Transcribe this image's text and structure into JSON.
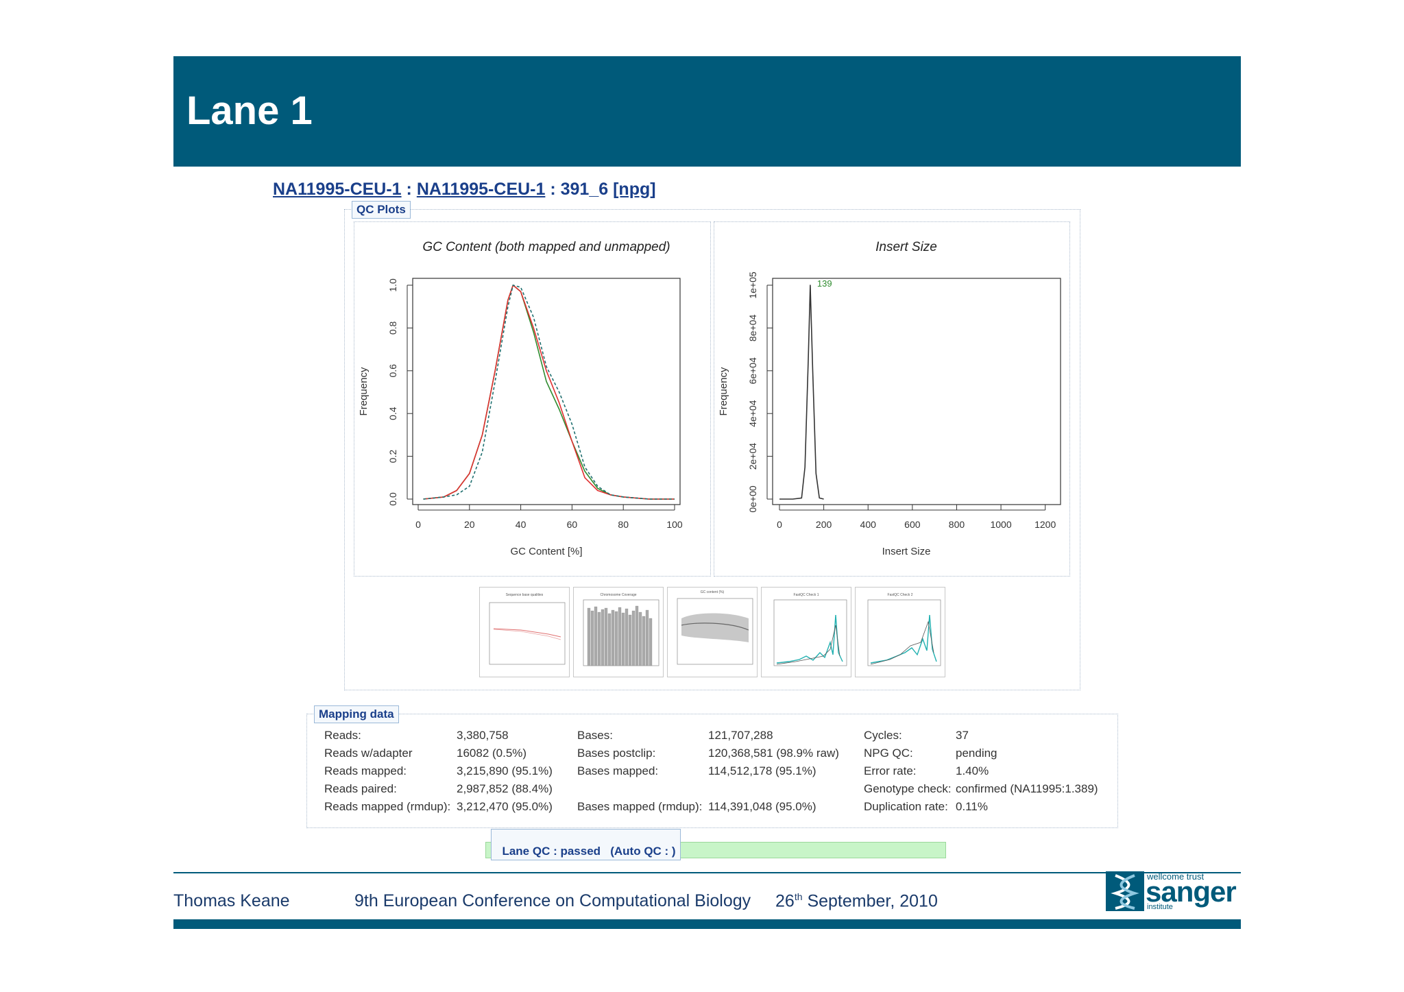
{
  "slide": {
    "title": "Lane 1"
  },
  "breadcrumb": {
    "link1": "NA11995-CEU-1",
    "sep1": " : ",
    "link2": "NA11995-CEU-1",
    "sep2": " : 391_6 ",
    "link3": "[npg]"
  },
  "qc_plots": {
    "legend": "QC Plots",
    "gc_chart": {
      "title": "GC Content (both mapped and unmapped)",
      "xlabel": "GC Content [%]",
      "ylabel": "Frequency",
      "xticks": [
        "0",
        "20",
        "40",
        "60",
        "80",
        "100"
      ],
      "yticks": [
        "0.0",
        "0.2",
        "0.4",
        "0.6",
        "0.8",
        "1.0"
      ]
    },
    "insert_chart": {
      "title": "Insert Size",
      "xlabel": "Insert Size",
      "ylabel": "Frequency",
      "xticks": [
        "0",
        "200",
        "400",
        "600",
        "800",
        "1000",
        "1200"
      ],
      "yticks": [
        "0e+00",
        "2e+04",
        "4e+04",
        "6e+04",
        "8e+04",
        "1e+05"
      ],
      "peak_label": "139"
    }
  },
  "chart_data": [
    {
      "type": "line",
      "title": "GC Content (both mapped and unmapped)",
      "xlabel": "GC Content [%]",
      "ylabel": "Frequency",
      "xlim": [
        0,
        100
      ],
      "ylim": [
        0,
        1.0
      ],
      "x": [
        2,
        10,
        15,
        20,
        25,
        30,
        35,
        37,
        40,
        45,
        50,
        55,
        60,
        65,
        70,
        75,
        80,
        90,
        100
      ],
      "series": [
        {
          "color": "#2e8b2e",
          "values": [
            0,
            0.01,
            0.04,
            0.12,
            0.3,
            0.6,
            0.93,
            1.0,
            0.97,
            0.78,
            0.55,
            0.42,
            0.27,
            0.13,
            0.05,
            0.02,
            0.01,
            0,
            0
          ]
        },
        {
          "color": "#e03030",
          "values": [
            0,
            0.01,
            0.04,
            0.12,
            0.3,
            0.6,
            0.93,
            1.0,
            0.97,
            0.8,
            0.6,
            0.45,
            0.27,
            0.1,
            0.04,
            0.02,
            0.01,
            0,
            0
          ]
        },
        {
          "color": "#1f6f6f",
          "values": [
            0,
            0.01,
            0.02,
            0.06,
            0.22,
            0.55,
            0.9,
            1.0,
            0.99,
            0.85,
            0.62,
            0.5,
            0.35,
            0.15,
            0.06,
            0.02,
            0.01,
            0,
            0
          ]
        }
      ]
    },
    {
      "type": "line",
      "title": "Insert Size",
      "xlabel": "Insert Size",
      "ylabel": "Frequency",
      "xlim": [
        0,
        1300
      ],
      "ylim": [
        0,
        100000
      ],
      "x": [
        0,
        60,
        100,
        115,
        130,
        139,
        150,
        165,
        180,
        200
      ],
      "series": [
        {
          "color": "#333333",
          "values": [
            0,
            0,
            500,
            15000,
            65000,
            100000,
            60000,
            12000,
            500,
            0
          ]
        }
      ],
      "annotations": [
        "139"
      ]
    }
  ],
  "thumbnails": [
    {
      "name": "Sequence base qualities",
      "label": "Sequence base qualities"
    },
    {
      "name": "Chromosome Coverage",
      "label": "Chromosome Coverage"
    },
    {
      "name": "GC content",
      "label": "GC content (%)"
    },
    {
      "name": "FastQC Check 1",
      "label": "FastQC Check 1"
    },
    {
      "name": "FastQC Check 2",
      "label": "FastQC Check 2"
    }
  ],
  "mapping": {
    "legend": "Mapping data",
    "col1": [
      {
        "label": "Reads:",
        "value": "3,380,758"
      },
      {
        "label": "Reads w/adapter",
        "value": "16082 (0.5%)"
      },
      {
        "label": "Reads mapped:",
        "value": "3,215,890 (95.1%)"
      },
      {
        "label": "Reads paired:",
        "value": "2,987,852 (88.4%)"
      },
      {
        "label": "Reads mapped (rmdup):",
        "value": "3,212,470 (95.0%)"
      }
    ],
    "col2": [
      {
        "label": "Bases:",
        "value": "121,707,288"
      },
      {
        "label": "Bases postclip:",
        "value": "120,368,581 (98.9% raw)"
      },
      {
        "label": "Bases mapped:",
        "value": "114,512,178 (95.1%)"
      },
      {
        "label": "Bases mapped (rmdup):",
        "value": "114,391,048 (95.0%)"
      }
    ],
    "col3": [
      {
        "label": "Cycles:",
        "value": "37"
      },
      {
        "label": "NPG QC:",
        "value": "pending"
      },
      {
        "label": "Error rate:",
        "value": "1.40%"
      },
      {
        "label": "Genotype check:",
        "value": "confirmed (NA11995:1.389)"
      },
      {
        "label": "Duplication rate:",
        "value": "0.11%"
      }
    ]
  },
  "lane_qc": {
    "label": "Lane QC : passed",
    "auto": "(Auto QC : )"
  },
  "footer": {
    "author": "Thomas Keane",
    "conference": "9th European Conference on Computational Biology",
    "date_day": "26",
    "date_sup": "th",
    "date_rest": " September, 2010",
    "logo_top": "wellcome trust",
    "logo_main": "sanger",
    "logo_bottom": "institute"
  },
  "colors": {
    "brand": "#005a7a",
    "link": "#1a3f8a",
    "lane_qc_bg": "#c8f5c8"
  }
}
